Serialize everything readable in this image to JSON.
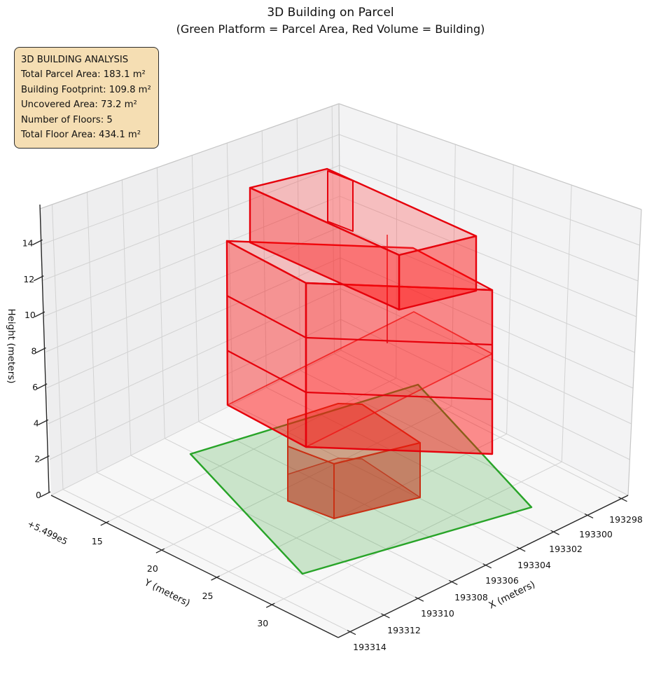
{
  "title": {
    "line1": "3D Building on Parcel",
    "line2": "(Green Platform = Parcel Area, Red Volume = Building)"
  },
  "info_box": {
    "heading": "3D BUILDING ANALYSIS",
    "lines": [
      "Total Parcel Area: 183.1 m²",
      "Building Footprint: 109.8 m²",
      "Uncovered Area: 73.2 m²",
      "Number of Floors: 5",
      "Total Floor Area: 434.1 m²"
    ]
  },
  "axes": {
    "x": {
      "label": "X (meters)",
      "ticks": [
        "193298",
        "193300",
        "193302",
        "193304",
        "193306",
        "193308",
        "193310",
        "193312",
        "193314"
      ]
    },
    "y": {
      "label": "Y (meters)",
      "offset": "+5.499e5",
      "ticks": [
        "15",
        "20",
        "25",
        "30"
      ]
    },
    "z": {
      "label": "Height (meters)",
      "ticks": [
        "0",
        "2",
        "4",
        "6",
        "8",
        "10",
        "12",
        "14"
      ]
    }
  },
  "colors": {
    "building_red": "#e6000b",
    "parcel_green": "#28a428",
    "ground_box_red": "#c93014",
    "info_box_bg": "#f5deb3",
    "pane_left": "#eeeeef",
    "pane_right": "#f3f3f4",
    "pane_floor": "#f7f7f7",
    "grid": "#d2d2d2",
    "spine": "#262626"
  },
  "chart_data": {
    "type": "3d-volume",
    "title": "3D Building on Parcel",
    "subtitle": "(Green Platform = Parcel Area, Red Volume = Building)",
    "legend": {
      "green_platform": "Parcel Area",
      "red_volume": "Building"
    },
    "xlabel": "X (meters)",
    "ylabel": "Y (meters)",
    "zlabel": "Height (meters)",
    "x_ticks": [
      193298,
      193300,
      193302,
      193304,
      193306,
      193308,
      193310,
      193312,
      193314
    ],
    "y_ticks": [
      15,
      20,
      25,
      30
    ],
    "y_axis_offset": "+5.499e5",
    "z_ticks": [
      0,
      2,
      4,
      6,
      8,
      10,
      12,
      14
    ],
    "analysis": {
      "total_parcel_area_m2": 183.1,
      "building_footprint_m2": 109.8,
      "uncovered_area_m2": 73.2,
      "number_of_floors": 5,
      "total_floor_area_m2": 434.1
    },
    "elements": {
      "parcel_platform": {
        "shape": "quadrilateral",
        "height_m": 0,
        "color": "green",
        "area_m2": 183.1
      },
      "building_volume": {
        "color": "red",
        "floors": 5,
        "floor_height_m": 3,
        "ground_floor": "small footprint box z=0-3",
        "upper_floors": "large footprint block z=3-12 with setback top block z=12-15"
      }
    }
  }
}
